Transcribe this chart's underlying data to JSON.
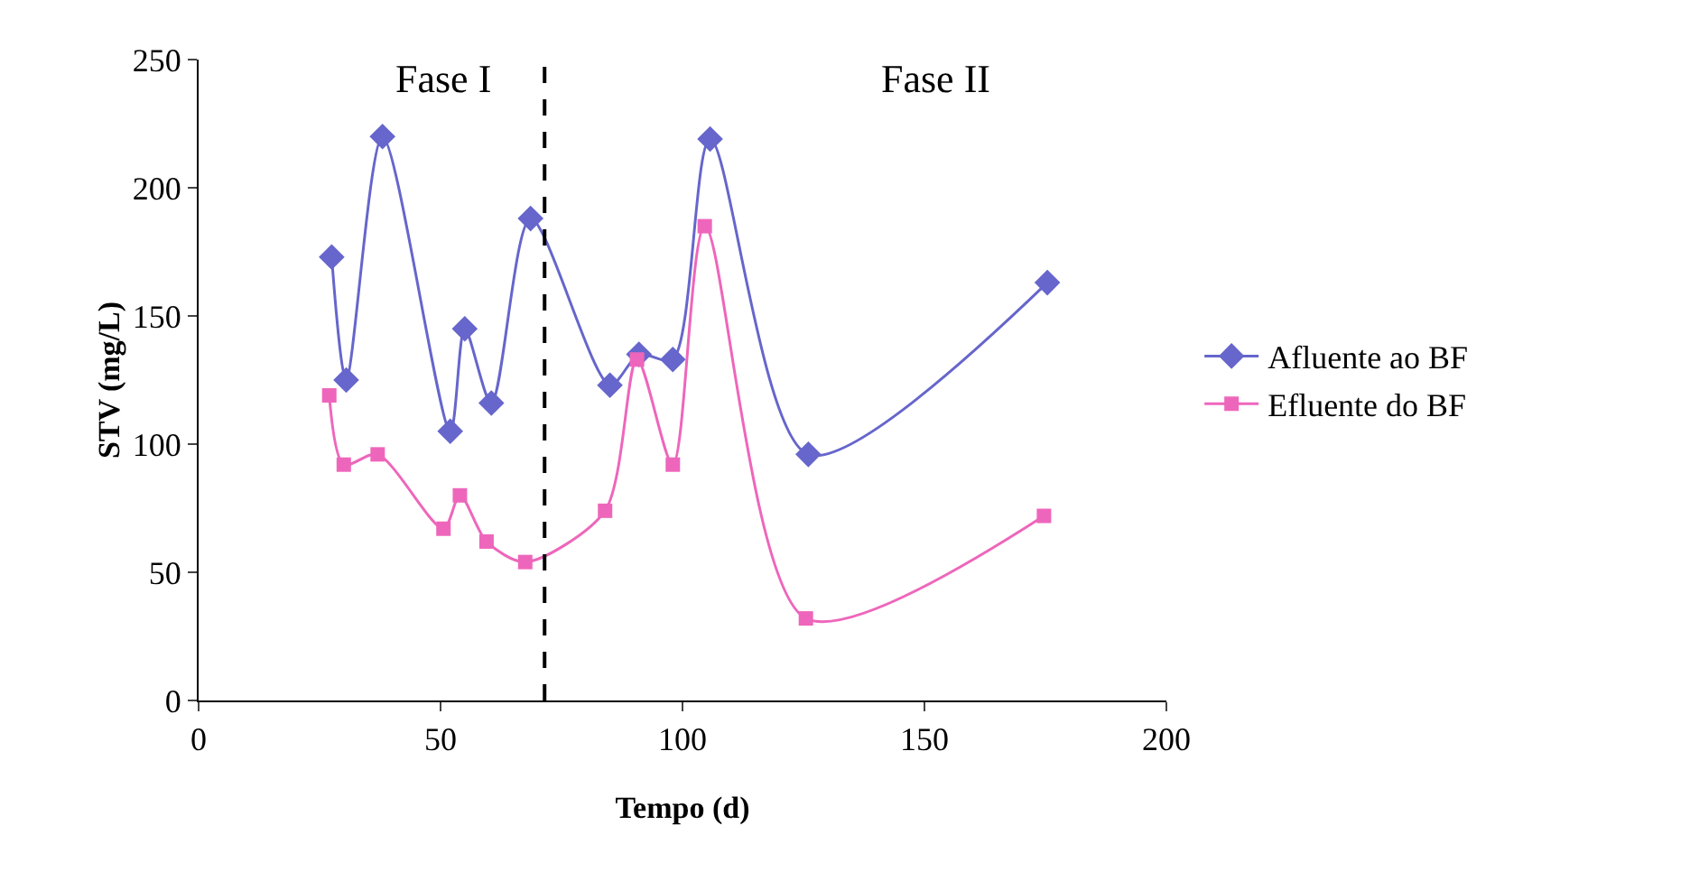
{
  "chart_data": {
    "type": "line",
    "xlabel": "Tempo (d)",
    "ylabel": "STV (mg/L)",
    "xlim": [
      0,
      200
    ],
    "xticks": [
      0,
      50,
      100,
      150,
      200
    ],
    "ylim": [
      0,
      250
    ],
    "yticks": [
      0,
      50,
      100,
      150,
      200,
      250
    ],
    "grid": false,
    "legend": "right",
    "line_style": "solid",
    "series": [
      {
        "name": "Afluente ao BF",
        "color": "#6666cc",
        "marker": "diamond",
        "x": [
          27.5,
          30.5,
          38,
          52,
          55,
          60.5,
          68.6,
          85,
          91,
          98,
          105.7,
          126,
          175.4
        ],
        "values": [
          173,
          125,
          220,
          105,
          145,
          116,
          188,
          123,
          135,
          133,
          219,
          96,
          163
        ]
      },
      {
        "name": "Efluente do BF",
        "color": "#ee66bb",
        "marker": "square",
        "x": [
          27,
          30,
          37,
          50.6,
          54,
          59.5,
          67.5,
          84,
          90.6,
          98,
          104.6,
          125.5,
          174.7
        ],
        "values": [
          119,
          92,
          96,
          67,
          80,
          62,
          54,
          74,
          133,
          92,
          185,
          32,
          72
        ]
      }
    ],
    "ref_lines": [
      {
        "axis": "x",
        "value": 71.5,
        "color": "#000000",
        "line_style": "dashed"
      }
    ],
    "annotations": [
      "Fase I",
      "Fase II"
    ]
  }
}
